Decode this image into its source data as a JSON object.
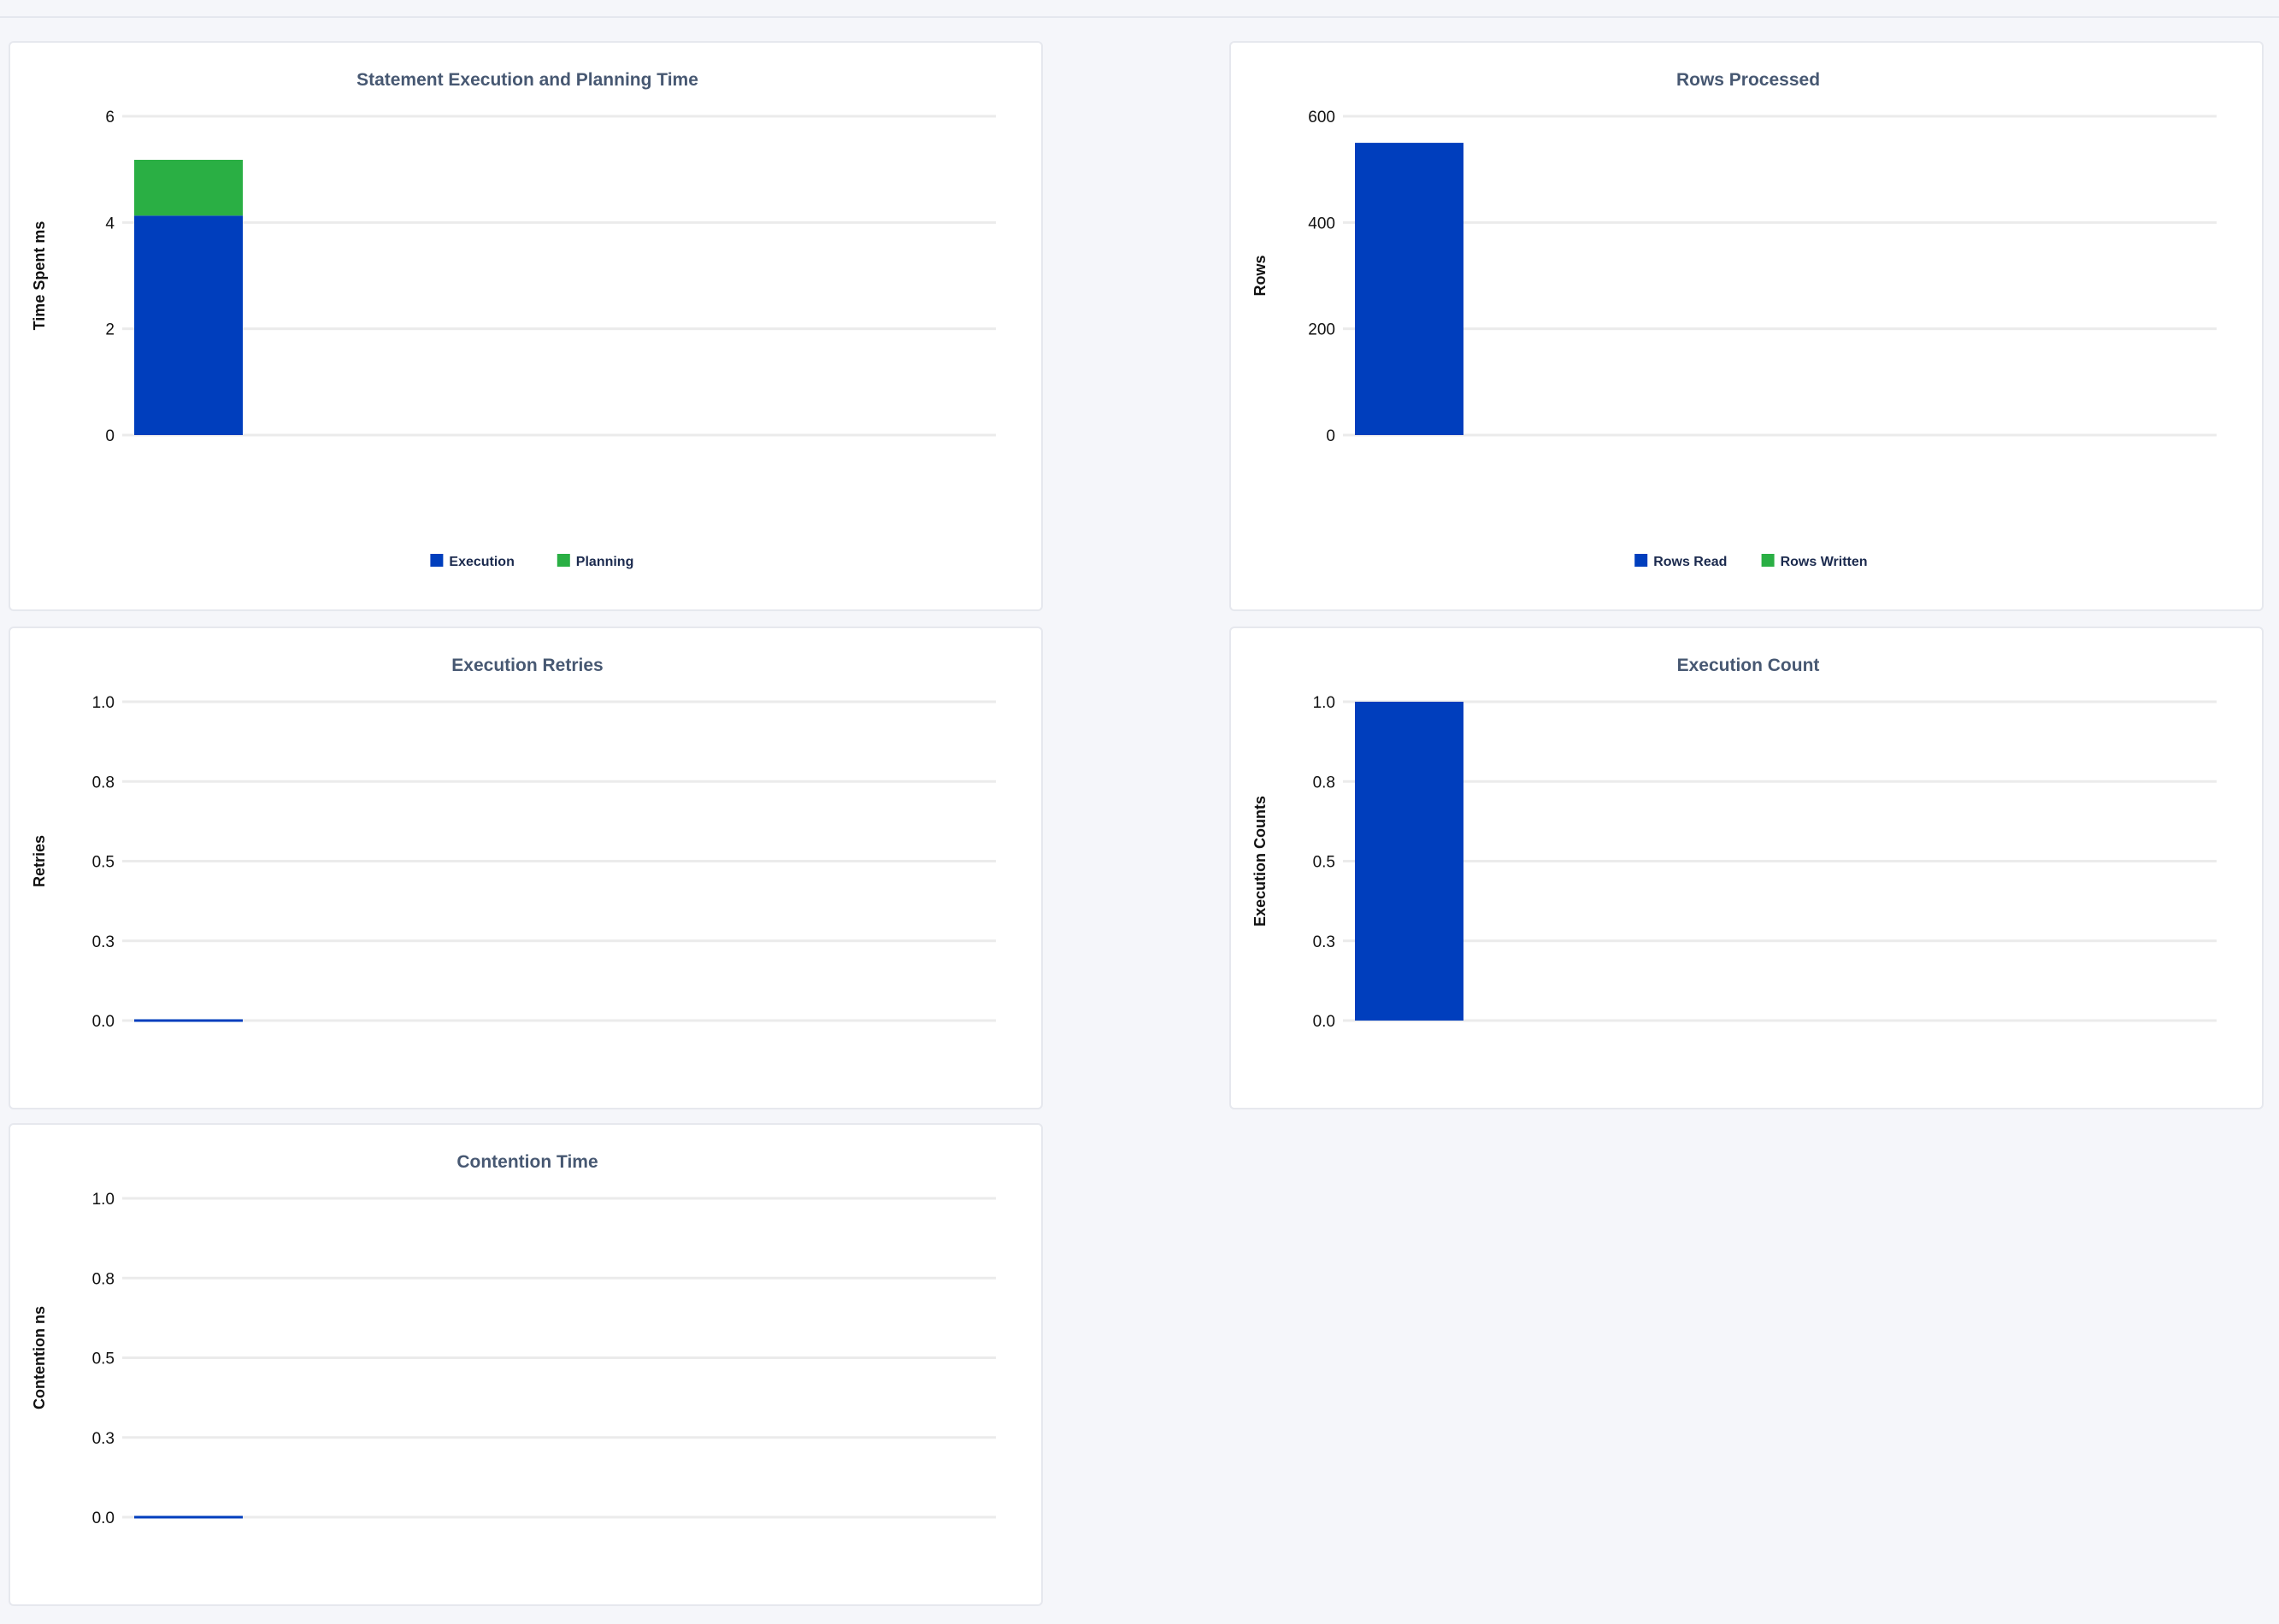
{
  "colors": {
    "blue": "#003ebd",
    "green": "#2aaf44",
    "grid": "#ebebeb"
  },
  "chart_data": [
    {
      "type": "bar",
      "stacked": true,
      "title": "Statement Execution and Planning Time",
      "ylabel": "Time Spent ms",
      "ylim": [
        0,
        6
      ],
      "yticks": [
        "0",
        "2",
        "4",
        "6"
      ],
      "ytick_values": [
        0,
        2,
        4,
        6
      ],
      "categories": [
        ""
      ],
      "series": [
        {
          "name": "Execution",
          "values": [
            4.13
          ],
          "color": "#003ebd"
        },
        {
          "name": "Planning",
          "values": [
            1.05
          ],
          "color": "#2aaf44"
        }
      ],
      "legend": "bottom",
      "grid": true
    },
    {
      "type": "bar",
      "stacked": true,
      "title": "Rows Processed",
      "ylabel": "Rows",
      "ylim": [
        0,
        600
      ],
      "yticks": [
        "0",
        "200",
        "400",
        "600"
      ],
      "ytick_values": [
        0,
        200,
        400,
        600
      ],
      "categories": [
        ""
      ],
      "series": [
        {
          "name": "Rows Read",
          "values": [
            550
          ],
          "color": "#003ebd"
        },
        {
          "name": "Rows Written",
          "values": [
            0
          ],
          "color": "#2aaf44"
        }
      ],
      "legend": "bottom",
      "grid": true
    },
    {
      "type": "bar",
      "title": "Execution Retries",
      "ylabel": "Retries",
      "ylim": [
        0,
        1
      ],
      "yticks": [
        "0.0",
        "0.3",
        "0.5",
        "0.8",
        "1.0"
      ],
      "ytick_values": [
        0,
        0.25,
        0.5,
        0.75,
        1
      ],
      "categories": [
        ""
      ],
      "series": [
        {
          "values": [
            0
          ],
          "color": "#003ebd"
        }
      ],
      "grid": true
    },
    {
      "type": "bar",
      "title": "Execution Count",
      "ylabel": "Execution Counts",
      "ylim": [
        0,
        1
      ],
      "yticks": [
        "0.0",
        "0.3",
        "0.5",
        "0.8",
        "1.0"
      ],
      "ytick_values": [
        0,
        0.25,
        0.5,
        0.75,
        1
      ],
      "categories": [
        ""
      ],
      "series": [
        {
          "values": [
            1
          ],
          "color": "#003ebd"
        }
      ],
      "grid": true
    },
    {
      "type": "bar",
      "title": "Contention Time",
      "ylabel": "Contention ns",
      "ylim": [
        0,
        1
      ],
      "yticks": [
        "0.0",
        "0.3",
        "0.5",
        "0.8",
        "1.0"
      ],
      "ytick_values": [
        0,
        0.25,
        0.5,
        0.75,
        1
      ],
      "categories": [
        ""
      ],
      "series": [
        {
          "values": [
            0
          ],
          "color": "#003ebd"
        }
      ],
      "grid": true
    }
  ]
}
